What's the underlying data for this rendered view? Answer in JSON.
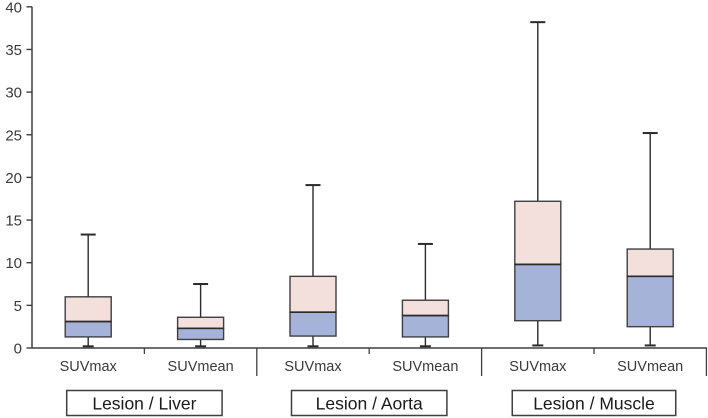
{
  "chart_data": {
    "type": "boxplot",
    "title": "",
    "xlabel": "",
    "ylabel": "",
    "ylim": [
      0,
      40
    ],
    "y_ticks": [
      0,
      5,
      10,
      15,
      20,
      25,
      30,
      35,
      40
    ],
    "grid": false,
    "legend": null,
    "groups": [
      {
        "label": "Lesion / Liver",
        "boxes": [
          {
            "label": "SUVmax",
            "min": 0.2,
            "q1": 1.3,
            "median": 3.1,
            "q3": 6.0,
            "max": 13.3
          },
          {
            "label": "SUVmean",
            "min": 0.2,
            "q1": 1.0,
            "median": 2.3,
            "q3": 3.6,
            "max": 7.5
          }
        ]
      },
      {
        "label": "Lesion / Aorta",
        "boxes": [
          {
            "label": "SUVmax",
            "min": 0.2,
            "q1": 1.4,
            "median": 4.2,
            "q3": 8.4,
            "max": 19.1
          },
          {
            "label": "SUVmean",
            "min": 0.2,
            "q1": 1.3,
            "median": 3.8,
            "q3": 5.6,
            "max": 12.2
          }
        ]
      },
      {
        "label": "Lesion / Muscle",
        "boxes": [
          {
            "label": "SUVmax",
            "min": 0.3,
            "q1": 3.2,
            "median": 9.8,
            "q3": 17.2,
            "max": 38.2
          },
          {
            "label": "SUVmean",
            "min": 0.3,
            "q1": 2.5,
            "median": 8.4,
            "q3": 11.6,
            "max": 25.2
          }
        ]
      }
    ],
    "colors": {
      "background": "#ffffff",
      "box_lower_fill": "#a6b3d9",
      "box_upper_fill": "#f3dfdc",
      "box_border": "#3f3f3f",
      "median_line": "#2b2b2b",
      "whisker": "#2b2b2b",
      "axis": "#3f3f3f",
      "tick_label": "#3a3a3a",
      "category_label": "#3a3a3a",
      "group_label": "#1a1a1a",
      "group_box_border": "#3f3f3f",
      "group_box_fill": "#ffffff"
    }
  }
}
